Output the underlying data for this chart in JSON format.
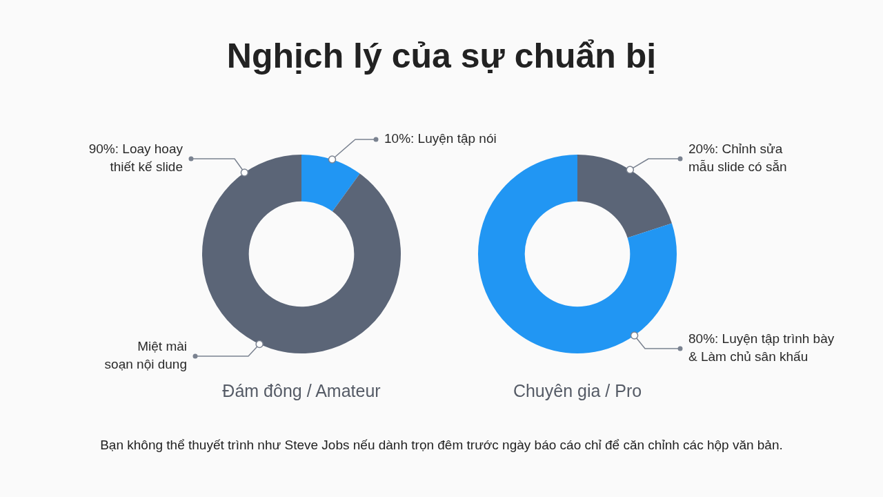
{
  "chart_data": [
    {
      "type": "donut",
      "title": "Nghịch lý của sự chuẩn bị",
      "xlabel": "Đám đông / Amateur",
      "categories": [
        "10%: Luyện tập nói",
        "90%: Loay hoay\nthiết kế slide"
      ],
      "values": [
        10,
        90
      ],
      "colors": [
        "#2196f3",
        "#5b6577"
      ],
      "annotations": [
        {
          "text": "Miệt mài\nsoạn nội dung",
          "x": "90%: Loay hoay\nthiết kế slide"
        }
      ]
    },
    {
      "type": "donut",
      "xlabel": "Chuyên gia / Pro",
      "categories": [
        "20%: Chỉnh sửa\nmẫu slide có sẵn",
        "80%: Luyện tập trình bày\n& Làm chủ sân khấu"
      ],
      "values": [
        20,
        80
      ],
      "colors": [
        "#5b6577",
        "#2196f3"
      ],
      "annotations": [
        "Bạn không thể thuyết trình như Steve Jobs nếu dành trọn đêm trước ngày báo cáo chỉ để căn chỉnh các hộp văn bản."
      ]
    }
  ]
}
